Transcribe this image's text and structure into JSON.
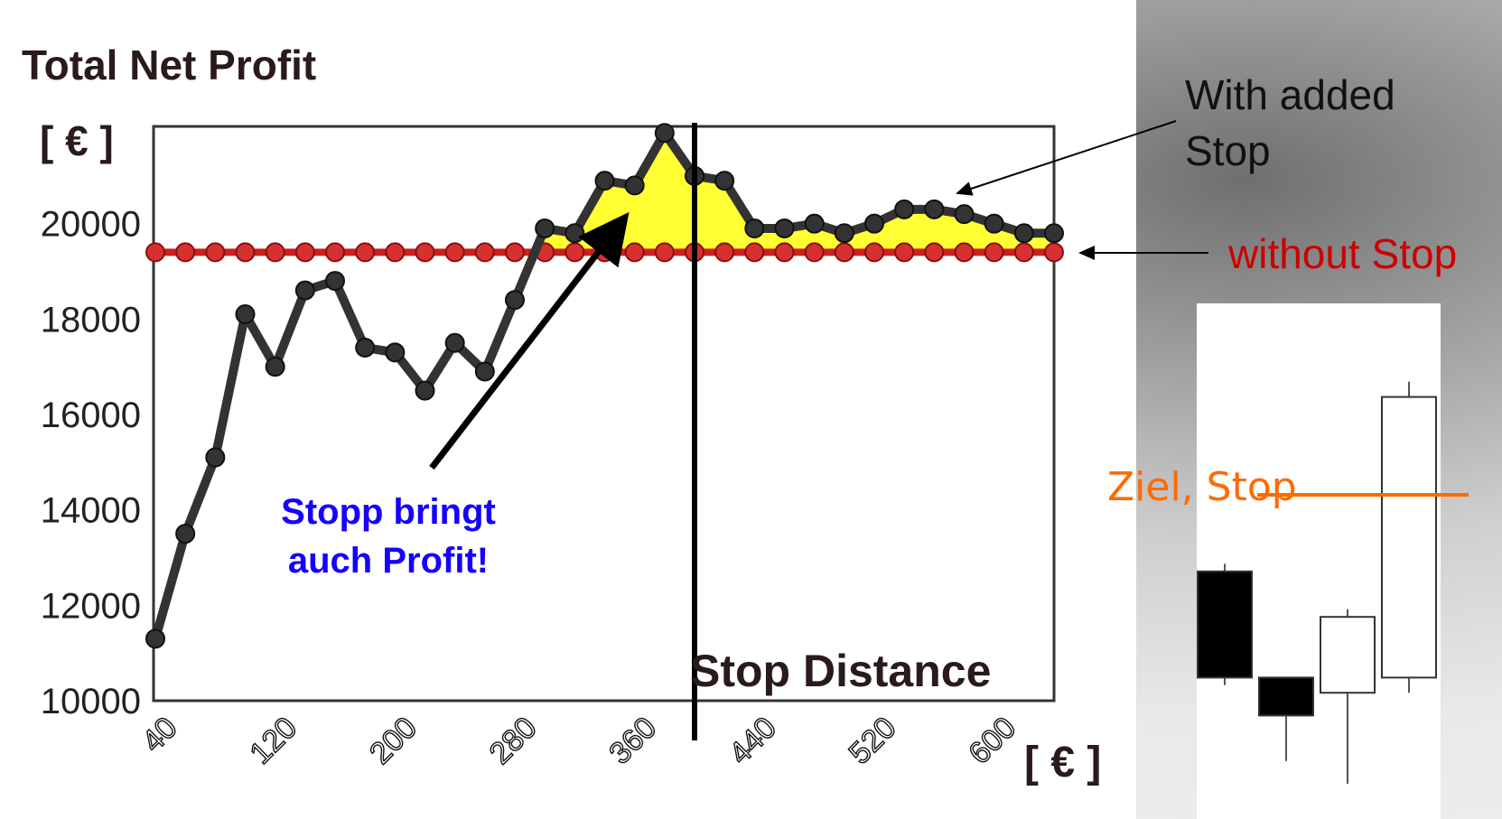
{
  "chart_data": {
    "type": "line",
    "title": "Total Net Profit",
    "ylabel": "[ € ]",
    "xlabel": "Stop Distance",
    "xunit": "[ € ]",
    "x_ticks": [
      "40",
      "120",
      "200",
      "280",
      "360",
      "440",
      "520",
      "600"
    ],
    "y_ticks": [
      "20000",
      "18000",
      "16000",
      "14000",
      "12000",
      "10000"
    ],
    "ylim": [
      10000,
      22000
    ],
    "xlim": [
      40,
      640
    ],
    "grid": false,
    "colors": {
      "with_stop": "#333333",
      "without_stop": "#cc1f1f",
      "fill": "#ffff33",
      "annotation_blue": "#1400ff",
      "annotation_red": "#cc0000",
      "annotation_orange": "#ff6a00"
    },
    "series": [
      {
        "name": "With added Stop",
        "x": [
          40,
          60,
          80,
          100,
          120,
          140,
          160,
          180,
          200,
          220,
          240,
          260,
          280,
          300,
          320,
          340,
          360,
          380,
          400,
          420,
          440,
          460,
          480,
          500,
          520,
          540,
          560,
          580,
          600,
          620,
          640
        ],
        "values": [
          11300,
          13500,
          15100,
          18100,
          17000,
          18600,
          18800,
          17400,
          17300,
          16500,
          17500,
          16900,
          18400,
          19900,
          19800,
          20900,
          20800,
          21900,
          21000,
          20900,
          19900,
          19900,
          20000,
          19800,
          20000,
          20300,
          20300,
          20200,
          20000,
          19800,
          19800
        ]
      },
      {
        "name": "without Stop",
        "x": [
          40,
          60,
          80,
          100,
          120,
          140,
          160,
          180,
          200,
          220,
          240,
          260,
          280,
          300,
          320,
          340,
          360,
          380,
          400,
          420,
          440,
          460,
          480,
          500,
          520,
          540,
          560,
          580,
          600,
          620,
          640
        ],
        "values": [
          19400,
          19400,
          19400,
          19400,
          19400,
          19400,
          19400,
          19400,
          19400,
          19400,
          19400,
          19400,
          19400,
          19400,
          19400,
          19400,
          19400,
          19400,
          19400,
          19400,
          19400,
          19400,
          19400,
          19400,
          19400,
          19400,
          19400,
          19400,
          19400,
          19400,
          19400
        ]
      }
    ],
    "annotations": {
      "stop_profit_line1": "Stopp bringt",
      "stop_profit_line2": "auch Profit!",
      "with_stop_line1": "With added",
      "with_stop_line2": "Stop",
      "without_stop": "without Stop",
      "vertical_marker_x": 400
    }
  },
  "candlestick_inset": {
    "label": "Ziel, Stop",
    "candles": [
      {
        "open": 2.8,
        "close": 1.4,
        "high": 2.9,
        "low": 1.3,
        "filled": true
      },
      {
        "open": 1.4,
        "close": 0.9,
        "high": 1.4,
        "low": 0.3,
        "filled": true
      },
      {
        "open": 1.2,
        "close": 2.2,
        "high": 2.3,
        "low": 0.0,
        "filled": false
      },
      {
        "open": 1.4,
        "close": 5.1,
        "high": 5.3,
        "low": 1.2,
        "filled": false
      }
    ],
    "level": 3.95
  }
}
